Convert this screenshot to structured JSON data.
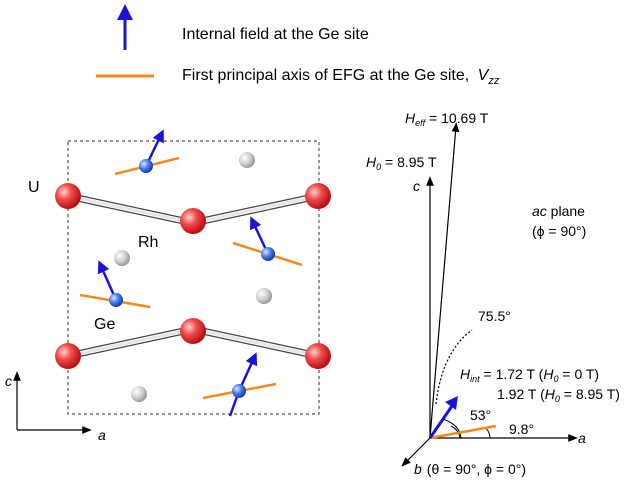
{
  "legend": {
    "field_label": "Internal field at the Ge site",
    "efg_label": "First principal axis of EFG at the Ge site,",
    "efg_symbol": "V",
    "efg_sub": "zz"
  },
  "crystal": {
    "U_label": "U",
    "Rh_label": "Rh",
    "Ge_label": "Ge",
    "axis_c": "c",
    "axis_a": "a"
  },
  "vector_diagram": {
    "heff_sym": "H",
    "heff_sub": "eff",
    "heff_val": " = 10.69 T",
    "h0_sym": "H",
    "h0_sub": "0",
    "h0_val": " = 8.95 T",
    "axis_c": "c",
    "axis_a": "a",
    "axis_b": "b",
    "b_note": "(θ = 90°, ϕ = 0°)",
    "plane_name": "ac",
    "plane_word": " plane",
    "plane_angle": "(ϕ = 90°)",
    "angle_75": "75.5°",
    "angle_53": "53°",
    "angle_9": "9.8°",
    "hint_sym": "H",
    "hint_sub": "int",
    "hint_val1": " = 1.72 T (",
    "hint_h0_sym": "H",
    "hint_h0_sub": "0",
    "hint_h0_val1": " = 0 T)",
    "hint_val2": "1.92 T (",
    "hint_h0_val2": " = 8.95 T)"
  },
  "colors": {
    "field_arrow": "#1a14d6",
    "efg_axis": "#f08a1c",
    "U_atom": "#e8242b",
    "Ge_atom": "#3d6fe0",
    "Rh_atom": "#c8c8c8"
  }
}
